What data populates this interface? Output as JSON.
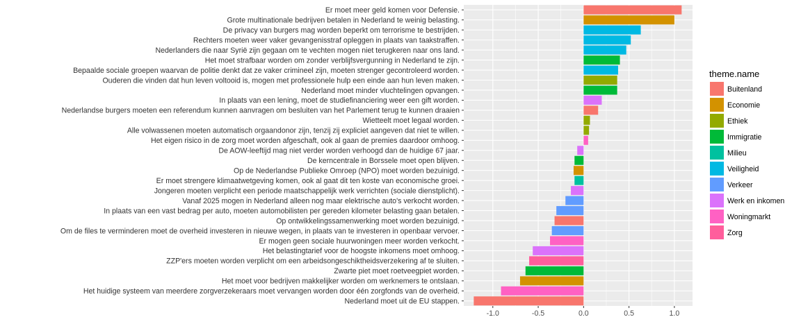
{
  "chart_data": {
    "type": "bar",
    "orientation": "horizontal",
    "xlim": [
      -1.32,
      1.2
    ],
    "x_ticks": [
      -1.0,
      -0.5,
      0.0,
      0.5,
      1.0
    ],
    "x_tick_labels": [
      "-1.0",
      "-0.5",
      "0.0",
      "0.5",
      "1.0"
    ],
    "grid": true,
    "legend_position": "right",
    "legend": {
      "title": "theme.name",
      "items": [
        {
          "name": "Buitenland",
          "color": "#F8766D"
        },
        {
          "name": "Economie",
          "color": "#D39200"
        },
        {
          "name": "Ethiek",
          "color": "#93AA00"
        },
        {
          "name": "Immigratie",
          "color": "#00BA38"
        },
        {
          "name": "Milieu",
          "color": "#00C19F"
        },
        {
          "name": "Veiligheid",
          "color": "#00B9E3"
        },
        {
          "name": "Verkeer",
          "color": "#619CFF"
        },
        {
          "name": "Werk en inkomen",
          "color": "#DB72FB"
        },
        {
          "name": "Woningmarkt",
          "color": "#FF61C3"
        },
        {
          "name": "Zorg",
          "color": "#FF5E9C"
        }
      ]
    },
    "bars": [
      {
        "label": "Er moet meer geld komen voor Defensie.",
        "value": 1.08,
        "theme": "Buitenland"
      },
      {
        "label": "Grote multinationale bedrijven betalen in Nederland te weinig belasting.",
        "value": 1.0,
        "theme": "Economie"
      },
      {
        "label": "De privacy van burgers mag worden beperkt om terrorisme te bestrijden.",
        "value": 0.63,
        "theme": "Veiligheid"
      },
      {
        "label": "Rechters moeten weer vaker gevangenisstraf opleggen in plaats van taakstraffen.",
        "value": 0.52,
        "theme": "Veiligheid"
      },
      {
        "label": "Nederlanders die naar Syrië zijn gegaan om te vechten mogen niet terugkeren naar ons land.",
        "value": 0.47,
        "theme": "Veiligheid"
      },
      {
        "label": "Het moet strafbaar worden om zonder verblijfsvergunning in Nederland te zijn.",
        "value": 0.4,
        "theme": "Immigratie"
      },
      {
        "label": "Bepaalde sociale groepen waarvan de politie denkt dat ze vaker crimineel zijn, moeten strenger gecontroleerd worden.",
        "value": 0.38,
        "theme": "Veiligheid"
      },
      {
        "label": "Ouderen die vinden dat hun leven voltooid is, mogen met professionele hulp een einde aan hun leven maken.",
        "value": 0.37,
        "theme": "Ethiek"
      },
      {
        "label": "Nederland moet minder vluchtelingen opvangen.",
        "value": 0.37,
        "theme": "Immigratie"
      },
      {
        "label": "In plaats van een lening, moet de studiefinanciering weer een gift worden.",
        "value": 0.2,
        "theme": "Werk en inkomen"
      },
      {
        "label": "Nederlandse burgers moeten een referendum kunnen aanvragen om besluiten van het Parlement terug te kunnen draaien",
        "value": 0.16,
        "theme": "Buitenland"
      },
      {
        "label": "Wietteelt moet legaal worden.",
        "value": 0.07,
        "theme": "Ethiek"
      },
      {
        "label": "Alle volwassenen moeten automatisch orgaandonor zijn, tenzij zij expliciet aangeven dat niet te willen.",
        "value": 0.06,
        "theme": "Ethiek"
      },
      {
        "label": "Het eigen risico in de zorg moet worden afgeschaft, ook al gaan de premies daardoor omhoog.",
        "value": 0.05,
        "theme": "Woningmarkt"
      },
      {
        "label": "De AOW-leeftijd mag niet verder worden verhoogd dan de huidige 67 jaar.",
        "value": -0.07,
        "theme": "Werk en inkomen"
      },
      {
        "label": "De kerncentrale in Borssele moet open blijven.",
        "value": -0.1,
        "theme": "Immigratie"
      },
      {
        "label": "Op de Nederlandse Publieke Omroep (NPO) moet worden bezuinigd.",
        "value": -0.11,
        "theme": "Economie"
      },
      {
        "label": "Er moet strengere klimaatwetgeving komen, ook al gaat dit ten koste van economische groei.",
        "value": -0.1,
        "theme": "Milieu"
      },
      {
        "label": "Jongeren moeten verplicht een periode maatschappelijk werk verrichten (sociale dienstplicht).",
        "value": -0.14,
        "theme": "Werk en inkomen"
      },
      {
        "label": "Vanaf 2025 mogen in Nederland alleen nog maar elektrische auto's verkocht worden.",
        "value": -0.2,
        "theme": "Verkeer"
      },
      {
        "label": "In plaats van een vast bedrag per auto, moeten automobilisten per gereden kilometer belasting gaan betalen.",
        "value": -0.3,
        "theme": "Verkeer"
      },
      {
        "label": "Op ontwikkelingssamenwerking moet worden bezuinigd.",
        "value": -0.32,
        "theme": "Buitenland"
      },
      {
        "label": "Om de files te verminderen moet de overheid investeren in nieuwe wegen, in plaats van te investeren in openbaar vervoer.",
        "value": -0.35,
        "theme": "Verkeer"
      },
      {
        "label": "Er mogen geen sociale huurwoningen meer worden verkocht.",
        "value": -0.37,
        "theme": "Woningmarkt"
      },
      {
        "label": "Het belastingtarief voor de hoogste inkomens moet omhoog.",
        "value": -0.56,
        "theme": "Werk en inkomen"
      },
      {
        "label": "ZZP'ers moeten worden verplicht om een arbeidsongeschiktheidsverzekering af te sluiten.",
        "value": -0.6,
        "theme": "Zorg"
      },
      {
        "label": "Zwarte piet moet roetveegpiet worden.",
        "value": -0.64,
        "theme": "Immigratie"
      },
      {
        "label": "Het moet voor bedrijven makkelijker worden om werknemers te ontslaan.",
        "value": -0.7,
        "theme": "Economie"
      },
      {
        "label": "Het huidige systeem van meerdere zorgverzekeraars moet vervangen worden door één zorgfonds van de overheid.",
        "value": -0.91,
        "theme": "Woningmarkt"
      },
      {
        "label": "Nederland moet uit de EU stappen.",
        "value": -1.21,
        "theme": "Buitenland"
      }
    ]
  }
}
